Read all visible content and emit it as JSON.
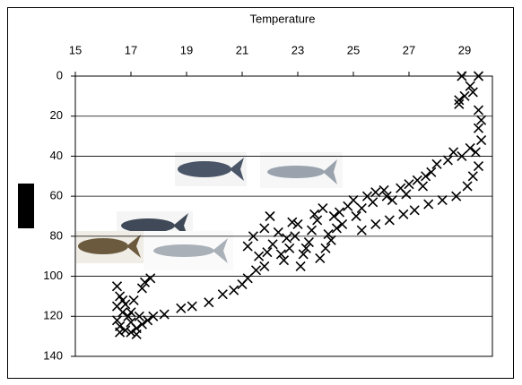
{
  "chart_data": {
    "type": "scatter",
    "x_label": "Temperature",
    "x": [
      16.5,
      16.6,
      16.5,
      16.7,
      16.5,
      16.6,
      16.8,
      17,
      17.2,
      17.4,
      17.6,
      17.3,
      17,
      16.8,
      16.7,
      17.1,
      17.5,
      17.7,
      17.4,
      16.9,
      17.8,
      18.2,
      17.2,
      16.6,
      17,
      18.8,
      19.2,
      19.8,
      20.3,
      20.7,
      21,
      21.2,
      21.5,
      21.8,
      21.2,
      21.4,
      21.6,
      21.9,
      22.1,
      22.3,
      22.5,
      22.7,
      22.9,
      23,
      23.2,
      23.4,
      23.5,
      23.7,
      23.8,
      24,
      24.1,
      24.3,
      24.5,
      24.6,
      24.8,
      25,
      25.1,
      25.3,
      22,
      22.8,
      23.6,
      21.8,
      22.4,
      23.1,
      24.2,
      23.3,
      22.6,
      24.4,
      23.9,
      25.5,
      25.8,
      26.1,
      26.4,
      26.7,
      27,
      27.3,
      27.6,
      27.8,
      27.5,
      26.9,
      26.2,
      25.7,
      28,
      28.4,
      25.3,
      25.8,
      26.3,
      26.8,
      27.2,
      27.7,
      28.2,
      28.7,
      29.1,
      29.3,
      29.5,
      29.4,
      29.6,
      29.5,
      29.2,
      29.6,
      29.5,
      28.9,
      28.6,
      28.8,
      29,
      28.9,
      29.5,
      29.2,
      28.8,
      29.3
    ],
    "y": [
      105,
      110,
      115,
      118,
      122,
      125,
      127,
      128,
      126,
      124,
      122,
      120,
      118,
      114,
      112,
      112,
      103,
      101,
      106,
      120,
      120,
      119,
      129,
      128,
      123,
      116,
      115,
      113,
      109,
      107,
      104,
      101,
      97,
      95,
      85,
      80,
      90,
      88,
      84,
      78,
      92,
      86,
      80,
      74,
      89,
      83,
      77,
      72,
      91,
      86,
      79,
      70,
      68,
      74,
      65,
      62,
      70,
      66,
      70,
      73,
      69,
      76,
      89,
      95,
      82,
      86,
      81,
      76,
      66,
      60,
      58,
      57,
      62,
      56,
      54,
      52,
      50,
      48,
      55,
      59,
      60,
      63,
      44,
      42,
      77,
      74,
      72,
      69,
      67,
      64,
      62,
      60,
      55,
      50,
      45,
      38,
      32,
      26,
      36,
      22,
      17,
      40,
      38,
      12,
      10,
      0,
      0,
      5,
      14,
      8
    ],
    "color": "#000000",
    "xlim": [
      15,
      30
    ],
    "xticks": [
      15,
      17,
      19,
      21,
      23,
      25,
      27,
      29
    ],
    "ylim": [
      0,
      140
    ],
    "yticks": [
      0,
      20,
      40,
      60,
      80,
      100,
      120,
      140
    ],
    "y_inverted": true,
    "x_axis_position": "top",
    "grid": true
  }
}
